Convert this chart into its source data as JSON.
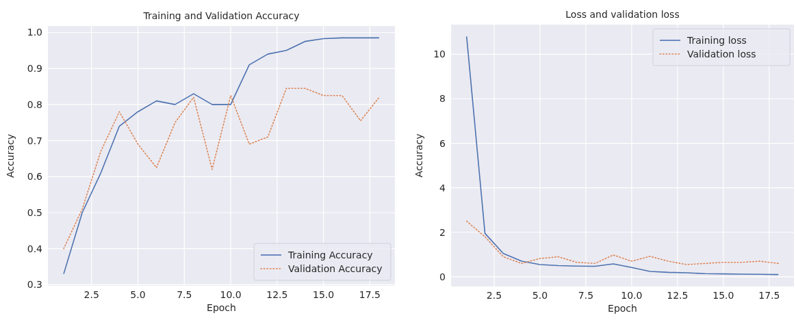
{
  "chart_data": [
    {
      "type": "line",
      "title": "Training and Validation Accuracy",
      "xlabel": "Epoch",
      "ylabel": "Accuracy",
      "x": [
        1,
        2,
        3,
        4,
        5,
        6,
        7,
        8,
        9,
        10,
        11,
        12,
        13,
        14,
        15,
        16,
        17,
        18
      ],
      "series": [
        {
          "name": "Training Accuracy",
          "color": "#4c72b0",
          "line_style": "solid",
          "values": [
            0.33,
            0.5,
            0.61,
            0.74,
            0.78,
            0.81,
            0.8,
            0.83,
            0.8,
            0.8,
            0.91,
            0.94,
            0.95,
            0.975,
            0.983,
            0.985,
            0.985,
            0.985
          ]
        },
        {
          "name": "Validation Accuracy",
          "color": "#dd8452",
          "line_style": "dotted",
          "values": [
            0.4,
            0.51,
            0.67,
            0.78,
            0.69,
            0.625,
            0.75,
            0.82,
            0.62,
            0.825,
            0.69,
            0.71,
            0.845,
            0.845,
            0.825,
            0.825,
            0.755,
            0.82
          ]
        }
      ],
      "xlim": [
        0.15,
        18.85
      ],
      "xticks": [
        {
          "value": 2.5,
          "label": "2.5"
        },
        {
          "value": 5,
          "label": "5.0"
        },
        {
          "value": 7.5,
          "label": "7.5"
        },
        {
          "value": 10,
          "label": "10.0"
        },
        {
          "value": 12.5,
          "label": "12.5"
        },
        {
          "value": 15,
          "label": "15.0"
        },
        {
          "value": 17.5,
          "label": "17.5"
        }
      ],
      "ylim": [
        0.297,
        1.018
      ],
      "yticks": [
        0.3,
        0.4,
        0.5,
        0.6,
        0.7,
        0.8,
        0.9,
        {
          "value": 1,
          "label": "1.0"
        }
      ],
      "grid": true,
      "legend": "bottom right"
    },
    {
      "type": "line",
      "title": "Loss and validation loss",
      "xlabel": "Epoch",
      "ylabel": "Accuracy",
      "x": [
        1,
        2,
        3,
        4,
        5,
        6,
        7,
        8,
        9,
        10,
        11,
        12,
        13,
        14,
        15,
        16,
        17,
        18
      ],
      "series": [
        {
          "name": "Training loss",
          "color": "#4c72b0",
          "line_style": "solid",
          "values": [
            10.8,
            1.95,
            1.05,
            0.7,
            0.55,
            0.5,
            0.48,
            0.47,
            0.58,
            0.42,
            0.24,
            0.2,
            0.18,
            0.14,
            0.13,
            0.12,
            0.11,
            0.1
          ]
        },
        {
          "name": "Validation loss",
          "color": "#dd8452",
          "line_style": "dotted",
          "values": [
            2.5,
            1.8,
            0.9,
            0.6,
            0.82,
            0.9,
            0.65,
            0.6,
            0.98,
            0.7,
            0.92,
            0.7,
            0.55,
            0.6,
            0.65,
            0.65,
            0.7,
            0.6
          ]
        }
      ],
      "xlim": [
        0.15,
        18.85
      ],
      "xticks": [
        {
          "value": 2.5,
          "label": "2.5"
        },
        {
          "value": 5,
          "label": "5.0"
        },
        {
          "value": 7.5,
          "label": "7.5"
        },
        {
          "value": 10,
          "label": "10.0"
        },
        {
          "value": 12.5,
          "label": "12.5"
        },
        {
          "value": 15,
          "label": "15.0"
        },
        {
          "value": 17.5,
          "label": "17.5"
        }
      ],
      "ylim": [
        -0.435,
        11.335
      ],
      "yticks": [
        0,
        2,
        4,
        6,
        8,
        10
      ],
      "grid": true,
      "legend": "top right"
    }
  ]
}
